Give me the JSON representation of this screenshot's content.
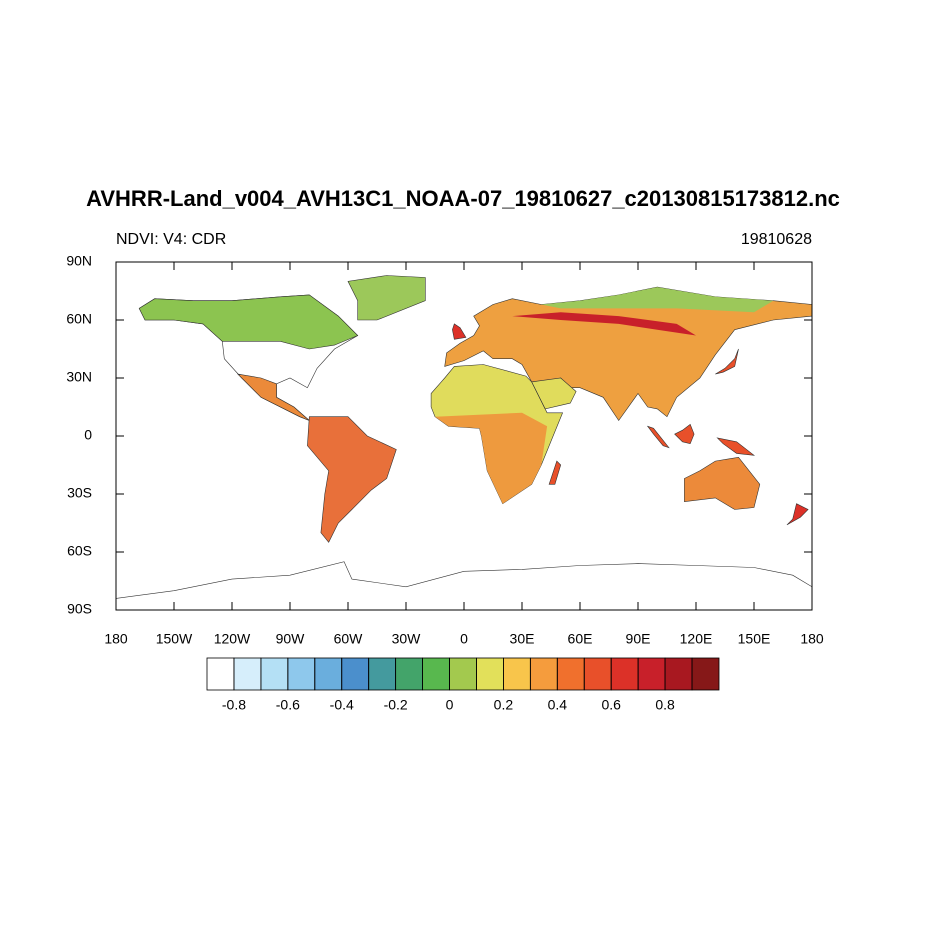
{
  "map": {
    "title": "AVHRR-Land_v004_AVH13C1_NOAA-07_19810627_c20130815173812.nc",
    "subtitle_left": "NDVI: V4: CDR",
    "subtitle_right": "19810628",
    "xlim": [
      -180,
      180
    ],
    "ylim": [
      -90,
      90
    ],
    "xticks": [
      {
        "value": -180,
        "label": "180"
      },
      {
        "value": -150,
        "label": "150W"
      },
      {
        "value": -120,
        "label": "120W"
      },
      {
        "value": -90,
        "label": "90W"
      },
      {
        "value": -60,
        "label": "60W"
      },
      {
        "value": -30,
        "label": "30W"
      },
      0,
      {
        "value": 30,
        "label": "30E"
      },
      {
        "value": 60,
        "label": "60E"
      },
      {
        "value": 90,
        "label": "90E"
      },
      {
        "value": 120,
        "label": "120E"
      },
      {
        "value": 150,
        "label": "150E"
      },
      {
        "value": 180,
        "label": "180"
      }
    ],
    "yticks": [
      {
        "value": 90,
        "label": "90N"
      },
      {
        "value": 60,
        "label": "60N"
      },
      {
        "value": 30,
        "label": "30N"
      },
      0,
      {
        "value": -30,
        "label": "30S"
      },
      {
        "value": -60,
        "label": "60S"
      },
      {
        "value": -90,
        "label": "90S"
      }
    ],
    "colorbar": {
      "levels": [
        -0.8,
        -0.7,
        -0.6,
        -0.5,
        -0.4,
        -0.3,
        -0.2,
        -0.1,
        0,
        0.1,
        0.2,
        0.3,
        0.4,
        0.5,
        0.6,
        0.7,
        0.8,
        0.9
      ],
      "colors": [
        "#ffffff",
        "#d6eefb",
        "#b4e0f5",
        "#8ec8ec",
        "#6aaedd",
        "#4b8fcc",
        "#449a9e",
        "#43a46a",
        "#58b84e",
        "#a3c94e",
        "#e2e05a",
        "#f8c54b",
        "#f59c3d",
        "#f0702d",
        "#e8502a",
        "#dc3128",
        "#c8202a",
        "#a81820",
        "#861818"
      ]
    }
  }
}
